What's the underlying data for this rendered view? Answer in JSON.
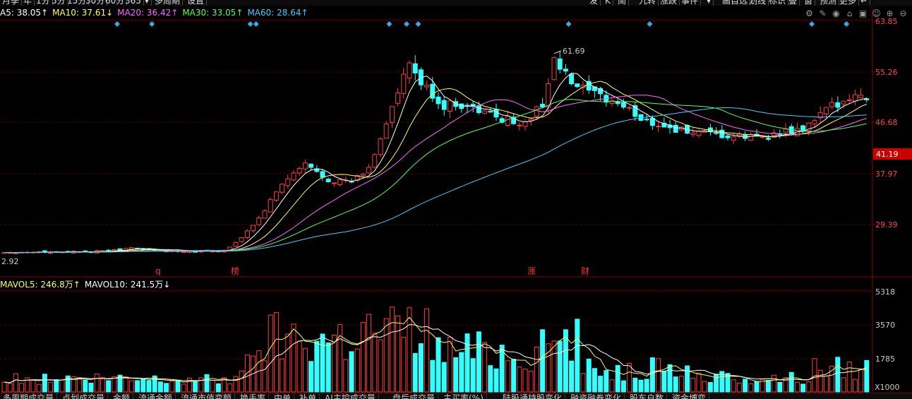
{
  "top_tabs": [
    {
      "label": "月"
    },
    {
      "label": "季"
    },
    {
      "label": "年"
    },
    {
      "label": "1分"
    },
    {
      "label": "5分"
    },
    {
      "label": "15分"
    },
    {
      "label": "30分"
    },
    {
      "label": "60分"
    },
    {
      "label": "365"
    },
    {
      "label": "▾"
    },
    {
      "label": "多周期"
    },
    {
      "label": "设置"
    }
  ],
  "top_tabs_right": [
    {
      "label": "发"
    },
    {
      "label": "K"
    },
    {
      "label": "简"
    },
    {
      "label": "九转"
    },
    {
      "label": "涨跌"
    },
    {
      "label": "事件"
    },
    {
      "label": "▾"
    },
    {
      "label": "画自选"
    },
    {
      "label": "划线"
    },
    {
      "label": "标识"
    },
    {
      "label": "叠"
    },
    {
      "label": "窗"
    },
    {
      "label": "预测"
    },
    {
      "label": "更多"
    },
    {
      "label": "↵"
    }
  ],
  "ma_legend": [
    {
      "text": "A5: 38.05↑",
      "color": "#ffffff"
    },
    {
      "text": "MA10: 37.61↓",
      "color": "#ffff55"
    },
    {
      "text": "MA20: 36.42↑",
      "color": "#ff66ff"
    },
    {
      "text": "MA30: 33.05↑",
      "color": "#55ff55"
    },
    {
      "text": "MA60: 28.64↑",
      "color": "#44ccff"
    }
  ],
  "chart_icons": [
    "settings-icon",
    "brush-icon",
    "eye-icon",
    "lock-icon",
    "bag-icon",
    "mask-icon",
    "zoom-in-icon",
    "zoom-out-icon"
  ],
  "price_axis": {
    "labels": [
      "63.85",
      "55.26",
      "46.68",
      "37.97",
      "29.39"
    ],
    "current_price": "41.19",
    "current_price_bg": "#cc0000",
    "peak_label": "61.69",
    "low_label": "2.92"
  },
  "event_markers": [
    {
      "text": "q",
      "color": "#ff3333"
    },
    {
      "text": "榜",
      "color": "#ff3333"
    },
    {
      "text": "涨",
      "color": "#ff3333"
    },
    {
      "text": "财",
      "color": "#ff3333"
    }
  ],
  "volume_legend": [
    {
      "text": "MAVOL5: 246.8万↑",
      "color": "#ffff55"
    },
    {
      "text": "MAVOL10: 241.5万↓",
      "color": "#ffffff"
    }
  ],
  "volume_axis": {
    "labels": [
      "5318",
      "3570",
      "1785"
    ],
    "unit": "X1000"
  },
  "bottom_tabs": [
    {
      "label": "多周期成交量"
    },
    {
      "label": "点划成交量"
    },
    {
      "label": "金额"
    },
    {
      "label": "流通金额"
    },
    {
      "label": "流通市值变额"
    },
    {
      "label": "换手率"
    },
    {
      "label": "中单"
    },
    {
      "label": "补单"
    },
    {
      "label": "AI主控成交量"
    },
    {
      "label": "盘后成交量"
    },
    {
      "label": "主买率(%)"
    },
    {
      "label": "陆股通持股变化"
    },
    {
      "label": "融资融券变化"
    },
    {
      "label": "股东户数"
    },
    {
      "label": "资金博弈"
    }
  ],
  "colors": {
    "up": "#ff3c3c",
    "down": "#33ffff",
    "grid": "#5a0000",
    "axis_text": "#ff4444"
  }
}
